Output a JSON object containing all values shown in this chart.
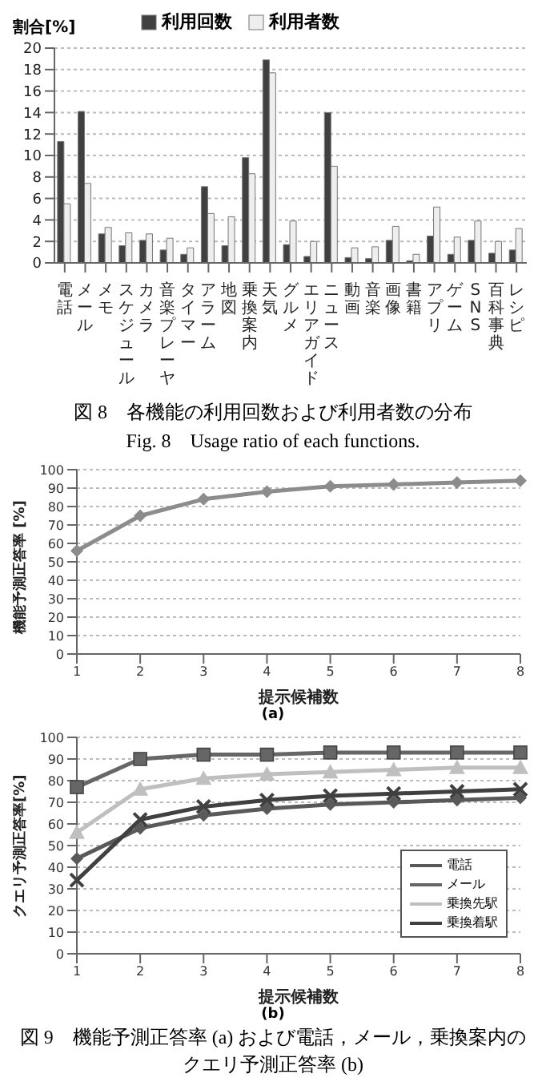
{
  "chart_data": [
    {
      "type": "bar",
      "ylabel": "割合[%]",
      "categories": [
        "電話",
        "メール",
        "メモ",
        "スケジュール",
        "カメラ",
        "音楽プレーヤ",
        "タイマー",
        "アラーム",
        "地図",
        "乗換案内",
        "天気",
        "グルメ",
        "エリアガイド",
        "ニュース",
        "動画",
        "音楽",
        "画像",
        "書籍",
        "アプリ",
        "ゲーム",
        "SNS",
        "百科事典",
        "レシピ"
      ],
      "series": [
        {
          "name": "利用回数",
          "color": "#404040",
          "values": [
            11.3,
            14.1,
            2.7,
            1.6,
            2.1,
            1.2,
            0.8,
            7.1,
            1.6,
            9.8,
            18.9,
            1.7,
            0.6,
            14.0,
            0.5,
            0.4,
            2.1,
            0.2,
            2.5,
            0.8,
            2.1,
            0.9,
            1.2
          ]
        },
        {
          "name": "利用者数",
          "color": "#eeeeee",
          "values": [
            5.5,
            7.4,
            3.3,
            2.8,
            2.7,
            2.3,
            1.4,
            4.6,
            4.3,
            8.3,
            17.7,
            3.9,
            2.0,
            9.0,
            1.4,
            1.5,
            3.4,
            0.8,
            5.2,
            2.4,
            3.9,
            2.0,
            3.2
          ]
        }
      ],
      "ylim": [
        0,
        20
      ],
      "yticks": [
        0,
        2,
        4,
        6,
        8,
        10,
        12,
        14,
        16,
        18,
        20
      ],
      "grid": "y",
      "legend": "top",
      "annotations": [
        "図 8　各機能の利用回数および利用者数の分布",
        "Fig. 8　Usage ratio of each functions."
      ]
    },
    {
      "type": "line",
      "xlabel": "提示候補数",
      "ylabel": "機能予測正答率 [%]",
      "categories": [
        "1",
        "2",
        "3",
        "4",
        "5",
        "6",
        "7",
        "8"
      ],
      "series": [
        {
          "color": "#8c8c8c",
          "marker": "diamond",
          "values": [
            56,
            75,
            84,
            88,
            91,
            92,
            93,
            94
          ]
        }
      ],
      "ylim": [
        0,
        100
      ],
      "yticks": [
        0,
        10,
        20,
        30,
        40,
        50,
        60,
        70,
        80,
        90,
        100
      ],
      "grid": "y",
      "annotations": [
        "(a)"
      ]
    },
    {
      "type": "line",
      "xlabel": "提示候補数",
      "ylabel": "クエリ予測正答率[%]",
      "categories": [
        "1",
        "2",
        "3",
        "4",
        "5",
        "6",
        "7",
        "8"
      ],
      "series": [
        {
          "name": "電話",
          "color": "#595959",
          "marker": "diamond",
          "values": [
            44,
            58,
            64,
            67,
            69,
            70,
            71,
            72
          ]
        },
        {
          "name": "メール",
          "color": "#666666",
          "marker": "square",
          "values": [
            77,
            90,
            92,
            92,
            93,
            93,
            93,
            93
          ]
        },
        {
          "name": "乗換先駅",
          "color": "#bfbfbf",
          "marker": "triangle",
          "values": [
            56,
            76,
            81,
            83,
            84,
            85,
            86,
            86
          ]
        },
        {
          "name": "乗換着駅",
          "color": "#404040",
          "marker": "cross",
          "values": [
            34,
            62,
            68,
            71,
            73,
            74,
            75,
            76
          ]
        }
      ],
      "ylim": [
        0,
        100
      ],
      "yticks": [
        0,
        10,
        20,
        30,
        40,
        50,
        60,
        70,
        80,
        90,
        100
      ],
      "grid": "y",
      "legend": "bottom right",
      "annotations": [
        "(b)",
        "図 9　機能予測正答率 (a) および電話，メール，乗換案内のクエリ予測正答率 (b)"
      ]
    }
  ]
}
